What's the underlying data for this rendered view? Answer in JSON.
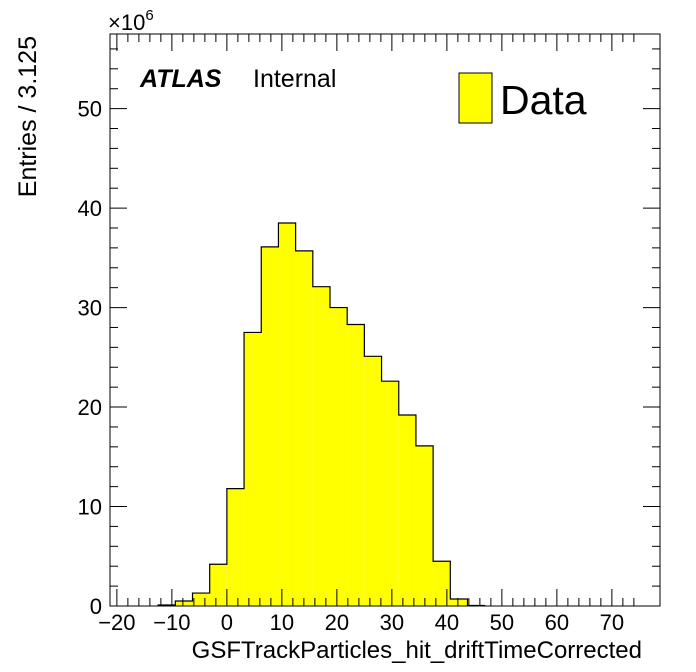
{
  "chart_data": {
    "type": "bar",
    "histogram": true,
    "xlabel": "GSFTrackParticles_hit_driftTimeCorrected",
    "ylabel": "Entries / 3.125",
    "y_multiplier": "×10",
    "y_multiplier_exponent": "6",
    "xlim": [
      -21.25,
      78.75
    ],
    "ylim": [
      0,
      57.5
    ],
    "x_ticks": [
      -20,
      -10,
      0,
      10,
      20,
      30,
      40,
      50,
      60,
      70
    ],
    "y_ticks": [
      0,
      10,
      20,
      30,
      40,
      50
    ],
    "x_tick_labels": [
      "−20",
      "−10",
      "0",
      "10",
      "20",
      "30",
      "40",
      "50",
      "60",
      "70"
    ],
    "y_tick_labels": [
      "0",
      "10",
      "20",
      "30",
      "40",
      "50"
    ],
    "bin_width": 3.125,
    "bin_edges": [
      -12.5,
      -9.375,
      -6.25,
      -3.125,
      0,
      3.125,
      6.25,
      9.375,
      12.5,
      15.625,
      18.75,
      21.875,
      25,
      28.125,
      31.25,
      34.375,
      37.5,
      40.625,
      43.75,
      46.875
    ],
    "values": [
      0.1,
      0.5,
      1.3,
      4.2,
      11.8,
      27.5,
      36.1,
      38.5,
      35.7,
      32.1,
      30.0,
      28.3,
      25.1,
      22.6,
      19.2,
      16.1,
      4.5,
      0.7,
      0.05
    ],
    "fill_color": "#ffff00",
    "edge_color": "#000000",
    "grid": false,
    "legend": {
      "placement": "top-right",
      "entries": [
        {
          "label": "Data",
          "color": "#ffff00"
        }
      ]
    },
    "annotation": {
      "atlas": "ATLAS",
      "status": "Internal",
      "placement": "top-left"
    }
  }
}
